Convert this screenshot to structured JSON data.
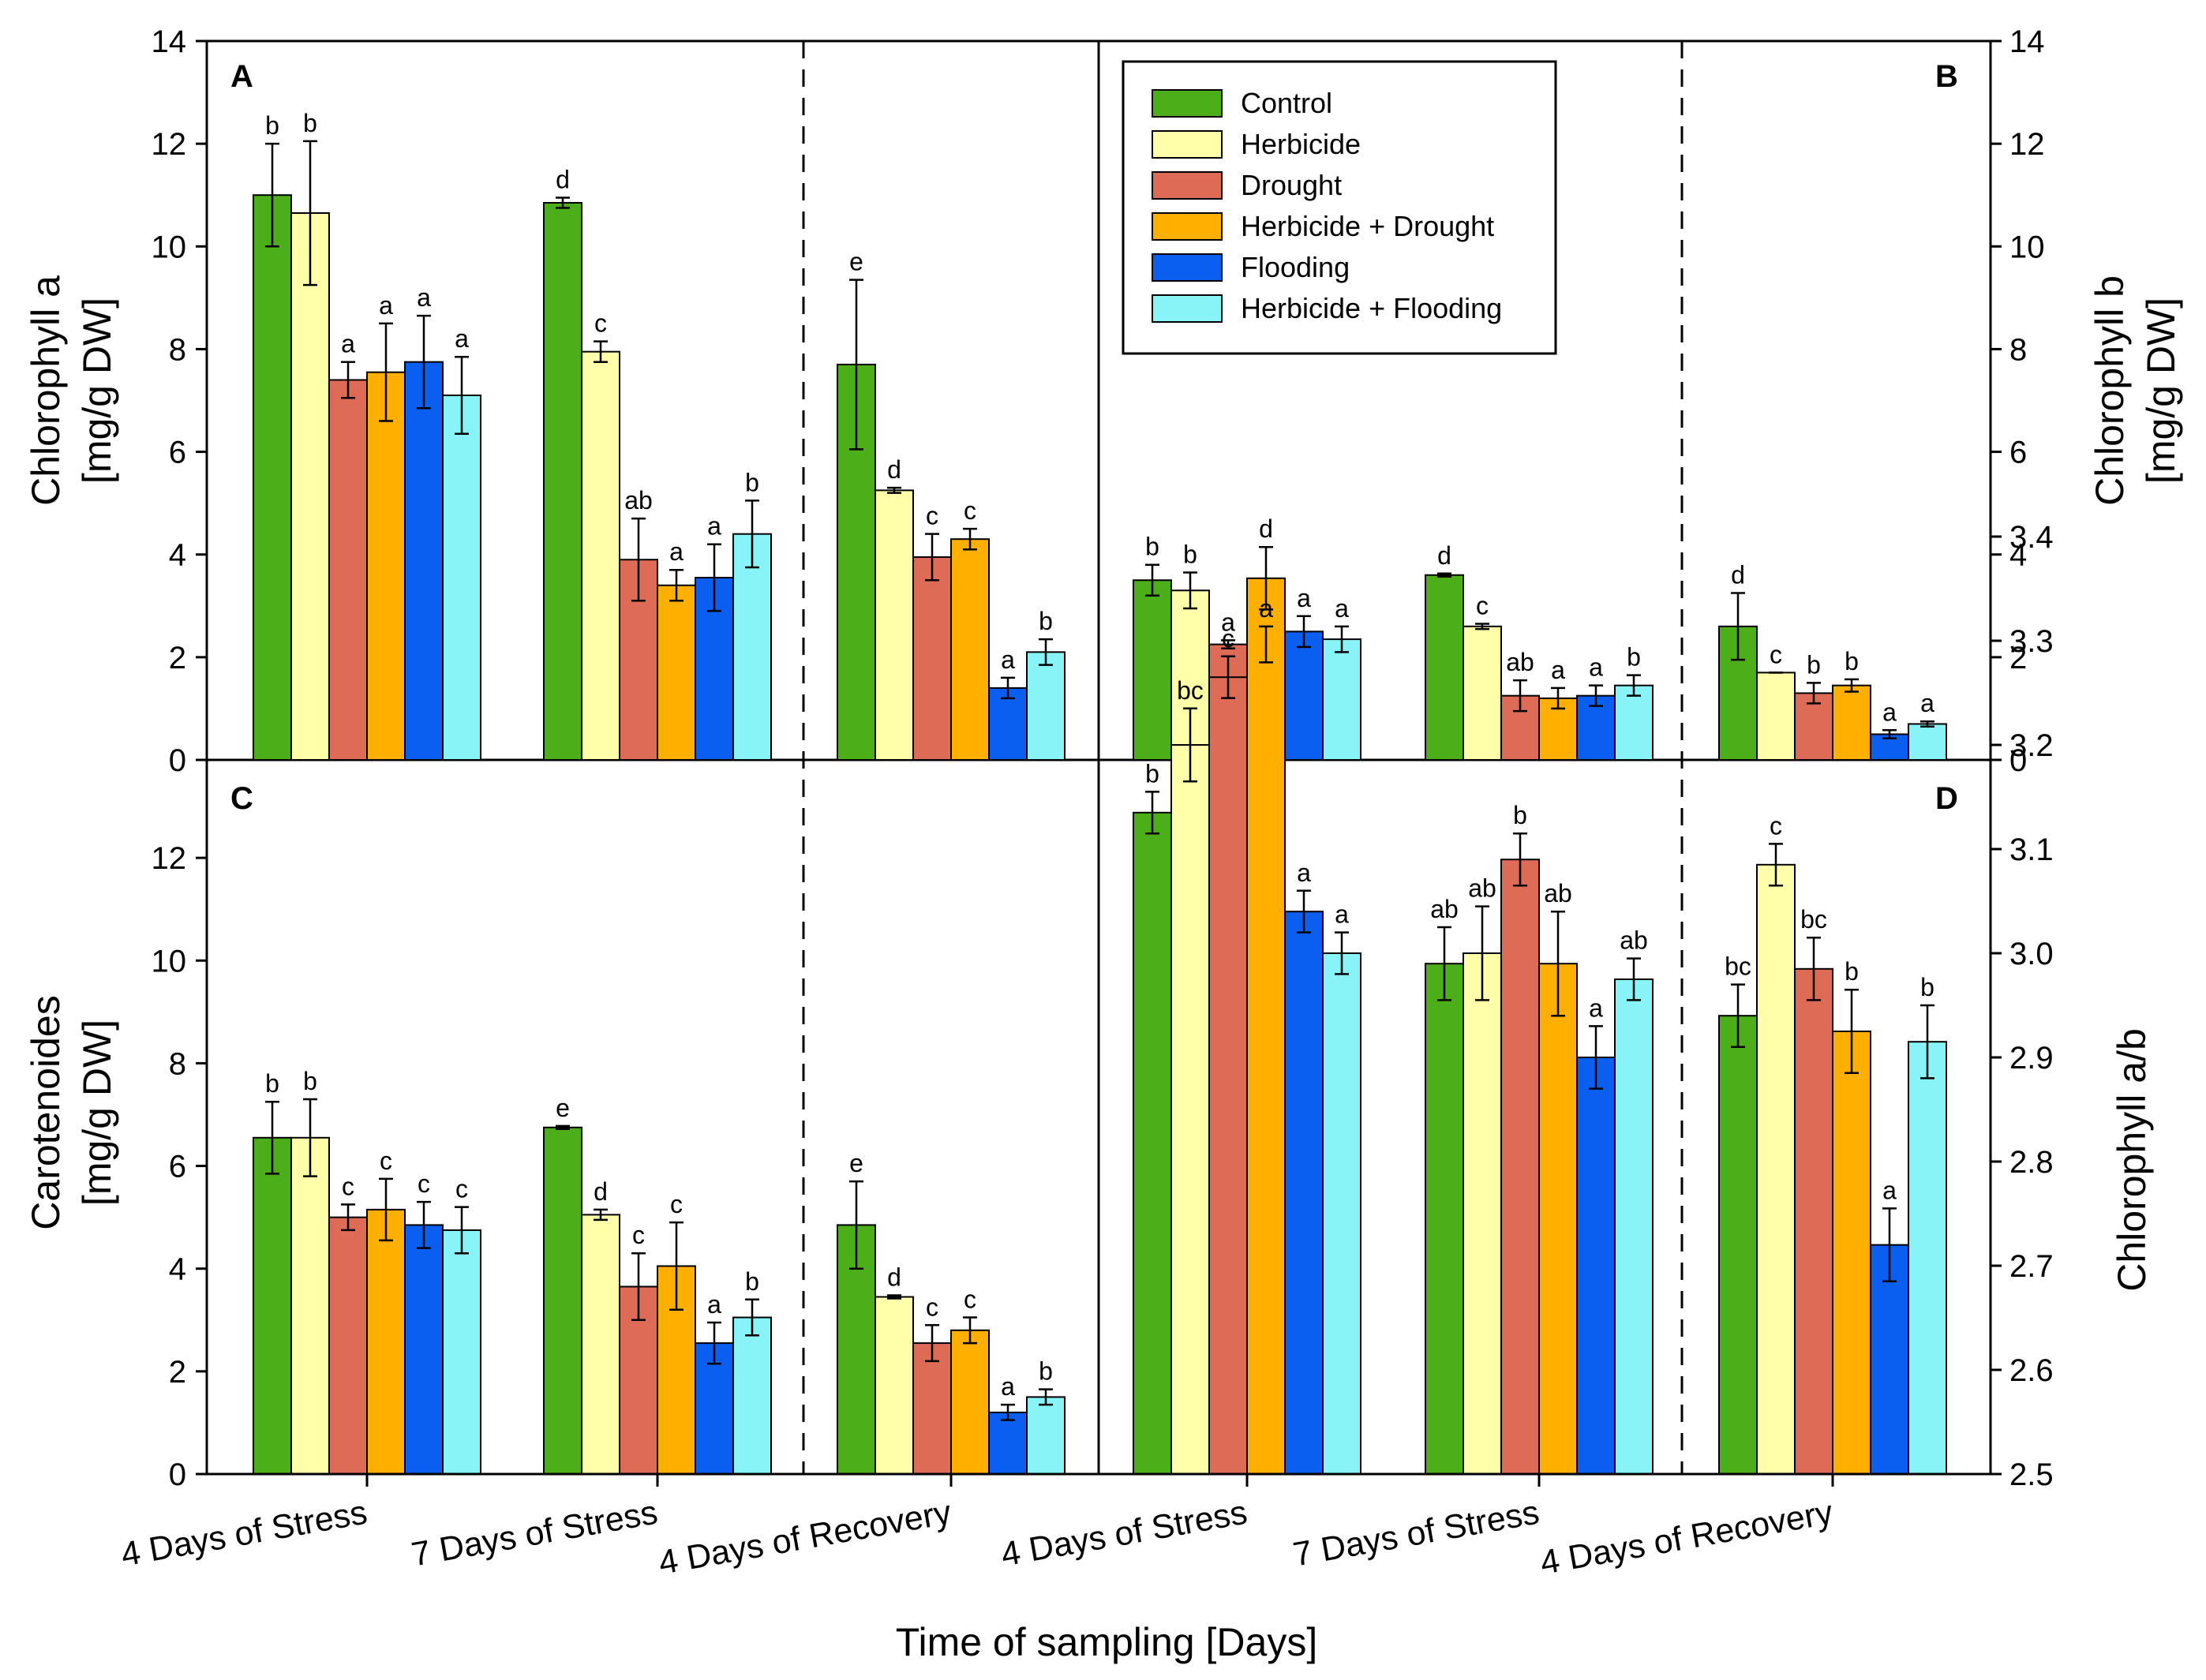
{
  "colors": {
    "series": [
      "#4caf1a",
      "#ffffaa",
      "#dd6b55",
      "#ffaf00",
      "#0b5ff0",
      "#88f4f8"
    ]
  },
  "chart_data": {
    "type": "bar",
    "xlabel": "Time of sampling [Days]",
    "legend": {
      "position": "top-right (panel B)",
      "entries": [
        "Control",
        "Herbicide",
        "Drought",
        "Herbicide + Drought",
        "Flooding",
        "Herbicide + Flooding"
      ]
    },
    "panels": [
      {
        "letter": "A",
        "ylabel_line1": "Chlorophyll a",
        "ylabel_line2": "[mg/g DW]",
        "ylim": [
          0,
          14
        ],
        "yticks": [
          "0",
          "2",
          "4",
          "6",
          "8",
          "10",
          "12",
          "14"
        ],
        "categories": [
          "4 Days of Stress",
          "7 Days of Stress",
          "4 Days of Recovery"
        ],
        "values": [
          [
            11.0,
            10.65,
            7.4,
            7.55,
            7.75,
            7.1
          ],
          [
            10.85,
            7.95,
            3.9,
            3.4,
            3.55,
            4.4
          ],
          [
            7.7,
            5.25,
            3.95,
            4.3,
            1.4,
            2.1
          ]
        ],
        "errors": [
          [
            1.0,
            1.4,
            0.35,
            0.95,
            0.9,
            0.75
          ],
          [
            0.1,
            0.2,
            0.8,
            0.3,
            0.65,
            0.65
          ],
          [
            1.65,
            0.05,
            0.45,
            0.2,
            0.2,
            0.25
          ]
        ],
        "labels": [
          [
            "b",
            "b",
            "a",
            "a",
            "a",
            "a"
          ],
          [
            "d",
            "c",
            "ab",
            "a",
            "a",
            "b"
          ],
          [
            "e",
            "d",
            "c",
            "c",
            "a",
            "b"
          ]
        ]
      },
      {
        "letter": "B",
        "ylabel_line1": "Chlorophyll b",
        "ylabel_line2": "[mg/g DW]",
        "ylim": [
          0,
          14
        ],
        "yticks": [
          "0",
          "2",
          "4",
          "6",
          "8",
          "10",
          "12",
          "14"
        ],
        "categories": [
          "4 Days of Stress",
          "7 Days of Stress",
          "4 Days of Recovery"
        ],
        "values": [
          [
            3.5,
            3.3,
            2.25,
            2.25,
            2.5,
            2.35
          ],
          [
            3.6,
            2.6,
            1.25,
            1.2,
            1.25,
            1.45
          ],
          [
            2.6,
            1.7,
            1.3,
            1.45,
            0.5,
            0.7
          ]
        ],
        "errors": [
          [
            0.3,
            0.35,
            0.08,
            0.35,
            0.3,
            0.25
          ],
          [
            0.03,
            0.05,
            0.3,
            0.2,
            0.2,
            0.2
          ],
          [
            0.65,
            0.0,
            0.2,
            0.12,
            0.08,
            0.05
          ]
        ],
        "labels": [
          [
            "b",
            "b",
            "a",
            "a",
            "a",
            "a"
          ],
          [
            "d",
            "c",
            "ab",
            "a",
            "a",
            "b"
          ],
          [
            "d",
            "c",
            "b",
            "b",
            "a",
            "a"
          ]
        ]
      },
      {
        "letter": "C",
        "ylabel_line1": "Carotenoides",
        "ylabel_line2": "[mg/g DW]",
        "ylim": [
          0,
          14
        ],
        "yticks": [
          "0",
          "2",
          "4",
          "6",
          "8",
          "10",
          "12"
        ],
        "categories": [
          "4 Days of Stress",
          "7 Days of Stress",
          "4 Days of Recovery"
        ],
        "values": [
          [
            6.55,
            6.55,
            5.0,
            5.15,
            4.85,
            4.75
          ],
          [
            6.75,
            5.05,
            3.65,
            4.05,
            2.55,
            3.05
          ],
          [
            4.85,
            3.45,
            2.55,
            2.8,
            1.2,
            1.5
          ]
        ],
        "errors": [
          [
            0.7,
            0.75,
            0.25,
            0.6,
            0.45,
            0.45
          ],
          [
            0.03,
            0.1,
            0.65,
            0.85,
            0.4,
            0.35
          ],
          [
            0.85,
            0.03,
            0.35,
            0.25,
            0.15,
            0.15
          ]
        ],
        "labels": [
          [
            "b",
            "b",
            "c",
            "c",
            "c",
            "c"
          ],
          [
            "e",
            "d",
            "c",
            "c",
            "a",
            "b"
          ],
          [
            "e",
            "d",
            "c",
            "c",
            "a",
            "b"
          ]
        ]
      },
      {
        "letter": "D",
        "ylabel_line1": "Chlorophyll a/b",
        "ylim": [
          2.5,
          3.45
        ],
        "yticks": [
          "2.5",
          "2.6",
          "2.7",
          "2.8",
          "2.9",
          "3.0",
          "3.1",
          "3.2",
          "3.3",
          "3.4"
        ],
        "categories": [
          "4 Days of Stress",
          "7 Days of Stress",
          "4 Days of Recovery"
        ],
        "values": [
          [
            3.135,
            3.2,
            3.265,
            3.36,
            3.04,
            3.0
          ],
          [
            2.99,
            3.0,
            3.09,
            2.99,
            2.9,
            2.975
          ],
          [
            2.94,
            3.085,
            2.985,
            2.925,
            2.72,
            2.915
          ]
        ],
        "errors": [
          [
            0.02,
            0.035,
            0.02,
            0.03,
            0.02,
            0.02
          ],
          [
            0.035,
            0.045,
            0.025,
            0.05,
            0.03,
            0.02
          ],
          [
            0.03,
            0.02,
            0.03,
            0.04,
            0.035,
            0.035
          ]
        ],
        "labels": [
          [
            "b",
            "bc",
            "c",
            "d",
            "a",
            "a"
          ],
          [
            "ab",
            "ab",
            "b",
            "ab",
            "a",
            "ab"
          ],
          [
            "bc",
            "c",
            "bc",
            "b",
            "a",
            "b"
          ]
        ]
      }
    ]
  }
}
